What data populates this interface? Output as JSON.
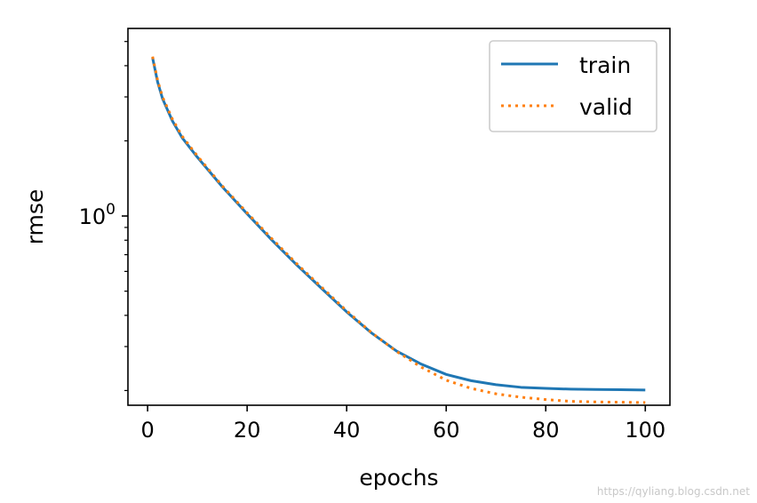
{
  "chart_data": {
    "type": "line",
    "xlabel": "epochs",
    "ylabel": "rmse",
    "yscale": "log",
    "xlim": [
      -3.95,
      104.95
    ],
    "ylim": [
      0.1746,
      5.64
    ],
    "xticks": [
      0,
      20,
      40,
      60,
      80,
      100
    ],
    "yticks": [
      {
        "value": 1,
        "base": "10",
        "exp": "0"
      }
    ],
    "legend_position": "top-right",
    "grid": false,
    "series": [
      {
        "name": "train",
        "color": "#1f77b4",
        "style": "solid",
        "x": [
          1,
          2,
          3,
          5,
          7,
          10,
          15,
          20,
          25,
          30,
          35,
          40,
          45,
          50,
          55,
          60,
          65,
          70,
          75,
          80,
          85,
          90,
          95,
          100
        ],
        "y": [
          4.3,
          3.45,
          2.95,
          2.4,
          2.05,
          1.72,
          1.31,
          1.02,
          0.8,
          0.636,
          0.512,
          0.413,
          0.34,
          0.288,
          0.255,
          0.232,
          0.219,
          0.211,
          0.206,
          0.204,
          0.2025,
          0.202,
          0.2015,
          0.201
        ]
      },
      {
        "name": "valid",
        "color": "#ff7f0e",
        "style": "dotted",
        "x": [
          1,
          2,
          3,
          5,
          7,
          10,
          15,
          20,
          25,
          30,
          35,
          40,
          45,
          50,
          55,
          60,
          65,
          70,
          75,
          80,
          85,
          90,
          95,
          100
        ],
        "y": [
          4.35,
          3.5,
          3.0,
          2.44,
          2.08,
          1.74,
          1.32,
          1.03,
          0.81,
          0.643,
          0.518,
          0.417,
          0.341,
          0.287,
          0.248,
          0.22,
          0.204,
          0.194,
          0.188,
          0.184,
          0.181,
          0.18,
          0.1795,
          0.179
        ]
      }
    ]
  },
  "watermark": "https://qyliang.blog.csdn.net"
}
